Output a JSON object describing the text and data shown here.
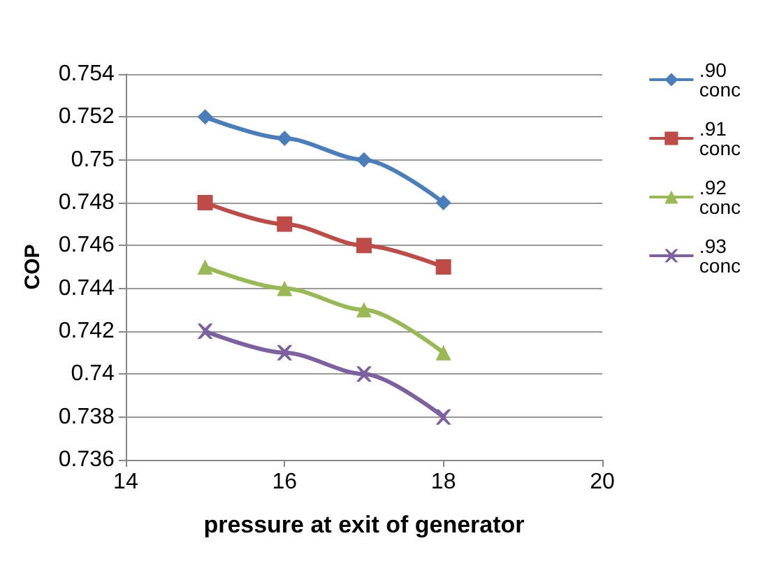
{
  "chart_data": {
    "type": "line",
    "xlabel": "pressure at exit of generator",
    "ylabel": "COP",
    "x": [
      15,
      16,
      17,
      18
    ],
    "series": [
      {
        "name": ".90 conc",
        "color": "#4a7ebb",
        "marker": "diamond",
        "values": [
          0.752,
          0.751,
          0.75,
          0.748
        ]
      },
      {
        "name": ".91 conc",
        "color": "#be4b48",
        "marker": "square",
        "values": [
          0.748,
          0.747,
          0.746,
          0.745
        ]
      },
      {
        "name": ".92 conc",
        "color": "#98b954",
        "marker": "triangle",
        "values": [
          0.745,
          0.744,
          0.743,
          0.741
        ]
      },
      {
        "name": ".93 conc",
        "color": "#7d60a0",
        "marker": "cross",
        "values": [
          0.742,
          0.741,
          0.74,
          0.738
        ]
      }
    ],
    "xlim": [
      14,
      20
    ],
    "xticks": [
      14,
      16,
      18,
      20
    ],
    "ylim": [
      0.736,
      0.754
    ],
    "yticks": [
      0.736,
      0.738,
      0.74,
      0.742,
      0.744,
      0.746,
      0.748,
      0.75,
      0.752,
      0.754
    ],
    "grid": "y",
    "legend": "right"
  }
}
